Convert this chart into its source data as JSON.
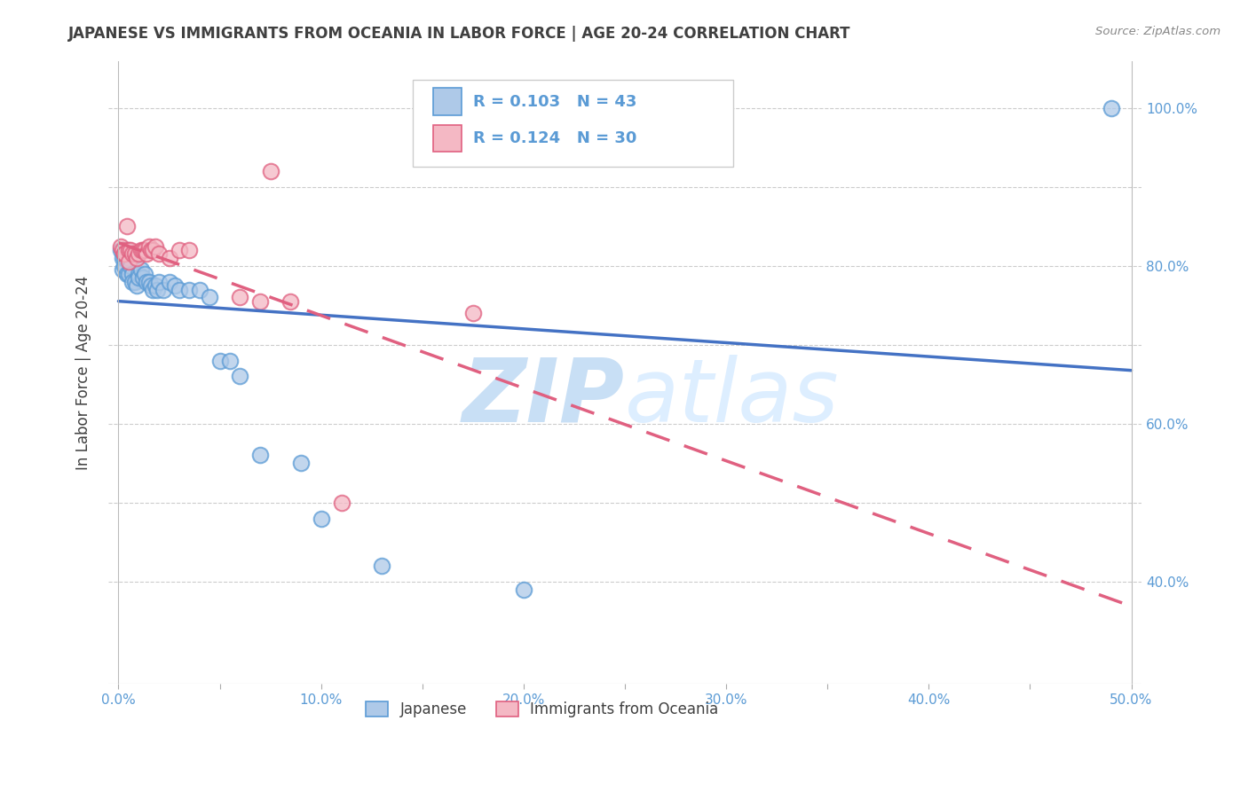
{
  "title": "JAPANESE VS IMMIGRANTS FROM OCEANIA IN LABOR FORCE | AGE 20-24 CORRELATION CHART",
  "source": "Source: ZipAtlas.com",
  "ylabel": "In Labor Force | Age 20-24",
  "x_ticks": [
    0.0,
    0.05,
    0.1,
    0.15,
    0.2,
    0.25,
    0.3,
    0.35,
    0.4,
    0.45,
    0.5
  ],
  "x_tick_labels": [
    "0.0%",
    "",
    "10.0%",
    "",
    "20.0%",
    "",
    "30.0%",
    "",
    "40.0%",
    "",
    "50.0%"
  ],
  "y_ticks": [
    0.4,
    0.5,
    0.6,
    0.7,
    0.8,
    0.9,
    1.0
  ],
  "y_tick_labels_right": [
    "40.0%",
    "",
    "60.0%",
    "",
    "80.0%",
    "",
    "100.0%"
  ],
  "xlim": [
    -0.005,
    0.505
  ],
  "ylim": [
    0.27,
    1.06
  ],
  "legend1_r": "0.103",
  "legend1_n": "43",
  "legend2_r": "0.124",
  "legend2_n": "30",
  "legend_label1": "Japanese",
  "legend_label2": "Immigrants from Oceania",
  "blue_fill": "#aec9e8",
  "blue_edge": "#5b9bd5",
  "pink_fill": "#f4b8c4",
  "pink_edge": "#e06080",
  "blue_line": "#4472c4",
  "pink_line": "#e06080",
  "axis_label_color": "#5b9bd5",
  "title_color": "#404040",
  "source_color": "#888888",
  "grid_color": "#cccccc",
  "background_color": "#ffffff",
  "watermark_color": "#ddeeff",
  "blue_x": [
    0.001,
    0.002,
    0.002,
    0.003,
    0.003,
    0.004,
    0.004,
    0.005,
    0.005,
    0.006,
    0.006,
    0.007,
    0.007,
    0.008,
    0.009,
    0.01,
    0.01,
    0.011,
    0.012,
    0.013,
    0.014,
    0.015,
    0.016,
    0.017,
    0.018,
    0.019,
    0.02,
    0.022,
    0.025,
    0.028,
    0.03,
    0.035,
    0.04,
    0.045,
    0.05,
    0.055,
    0.06,
    0.07,
    0.09,
    0.1,
    0.13,
    0.2,
    0.49
  ],
  "blue_y": [
    0.82,
    0.81,
    0.795,
    0.81,
    0.8,
    0.82,
    0.79,
    0.81,
    0.79,
    0.815,
    0.8,
    0.79,
    0.78,
    0.78,
    0.775,
    0.79,
    0.785,
    0.795,
    0.785,
    0.79,
    0.78,
    0.78,
    0.775,
    0.77,
    0.775,
    0.77,
    0.78,
    0.77,
    0.78,
    0.775,
    0.77,
    0.77,
    0.77,
    0.76,
    0.68,
    0.68,
    0.66,
    0.56,
    0.55,
    0.48,
    0.42,
    0.39,
    1.0
  ],
  "pink_x": [
    0.001,
    0.002,
    0.003,
    0.003,
    0.004,
    0.005,
    0.005,
    0.006,
    0.007,
    0.008,
    0.009,
    0.01,
    0.011,
    0.012,
    0.013,
    0.014,
    0.015,
    0.016,
    0.017,
    0.018,
    0.02,
    0.025,
    0.03,
    0.035,
    0.06,
    0.07,
    0.075,
    0.085,
    0.11,
    0.175
  ],
  "pink_y": [
    0.825,
    0.82,
    0.815,
    0.815,
    0.85,
    0.82,
    0.805,
    0.82,
    0.815,
    0.815,
    0.81,
    0.815,
    0.82,
    0.82,
    0.82,
    0.815,
    0.825,
    0.82,
    0.82,
    0.825,
    0.815,
    0.81,
    0.82,
    0.82,
    0.76,
    0.755,
    0.92,
    0.755,
    0.5,
    0.74
  ]
}
